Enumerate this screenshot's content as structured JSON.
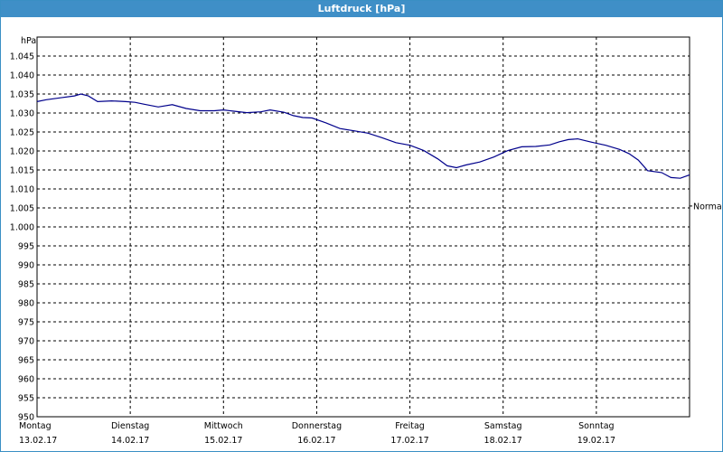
{
  "window": {
    "title": "Luftdruck [hPa]"
  },
  "chart_data": {
    "type": "line",
    "title": "Luftdruck [hPa]",
    "ylabel": "hPa",
    "ylim": [
      950,
      1050
    ],
    "yticks": [
      "1.045",
      "1.040",
      "1.035",
      "1.030",
      "1.025",
      "1.020",
      "1.015",
      "1.010",
      "1.005",
      "1.000",
      "995",
      "990",
      "985",
      "980",
      "975",
      "970",
      "965",
      "960",
      "955",
      "950"
    ],
    "ytick_values": [
      1045,
      1040,
      1035,
      1030,
      1025,
      1020,
      1015,
      1010,
      1005,
      1000,
      995,
      990,
      985,
      980,
      975,
      970,
      965,
      960,
      955,
      950
    ],
    "xlim": [
      0,
      7
    ],
    "days": [
      {
        "day": "Montag",
        "date": "13.02.17"
      },
      {
        "day": "Dienstag",
        "date": "14.02.17"
      },
      {
        "day": "Mittwoch",
        "date": "15.02.17"
      },
      {
        "day": "Donnerstag",
        "date": "16.02.17"
      },
      {
        "day": "Freitag",
        "date": "17.02.17"
      },
      {
        "day": "Samstag",
        "date": "18.02.17"
      },
      {
        "day": "Sonntag",
        "date": "19.02.17"
      }
    ],
    "reference_line": {
      "label": "Normal",
      "value": 1005.5
    },
    "grid": true,
    "line_color": "#00008b",
    "series": [
      {
        "x": [
          0,
          0.1,
          0.25,
          0.4,
          0.47,
          0.55,
          0.65,
          0.8,
          0.95,
          1.05,
          1.15,
          1.3,
          1.45,
          1.6,
          1.75,
          1.9,
          2.0,
          2.1,
          2.25,
          2.4,
          2.5,
          2.65,
          2.75,
          2.85,
          2.95,
          3.1,
          3.25,
          3.4,
          3.55,
          3.7,
          3.85,
          4.0,
          4.15,
          4.3,
          4.4,
          4.5,
          4.6,
          4.75,
          4.9,
          5.05,
          5.2,
          5.35,
          5.5,
          5.6,
          5.7,
          5.8,
          5.95,
          6.1,
          6.25,
          6.35,
          6.45,
          6.55,
          6.7,
          6.8,
          6.9,
          7.0
        ],
        "values": [
          1033,
          1033.5,
          1034,
          1034.5,
          1035,
          1034.5,
          1033,
          1033.2,
          1033,
          1032.8,
          1032.3,
          1031.6,
          1032.2,
          1031.2,
          1030.6,
          1030.6,
          1030.8,
          1030.5,
          1030.1,
          1030.3,
          1030.8,
          1030.2,
          1029.3,
          1028.8,
          1028.7,
          1027.4,
          1025.9,
          1025.3,
          1024.7,
          1023.5,
          1022.2,
          1021.5,
          1020.1,
          1017.9,
          1016.1,
          1015.6,
          1016.3,
          1017.1,
          1018.4,
          1020.1,
          1021.1,
          1021.2,
          1021.6,
          1022.4,
          1023.0,
          1023.2,
          1022.3,
          1021.5,
          1020.4,
          1019.3,
          1017.6,
          1014.8,
          1014.3,
          1013.0,
          1012.8,
          1013.7
        ]
      }
    ]
  }
}
